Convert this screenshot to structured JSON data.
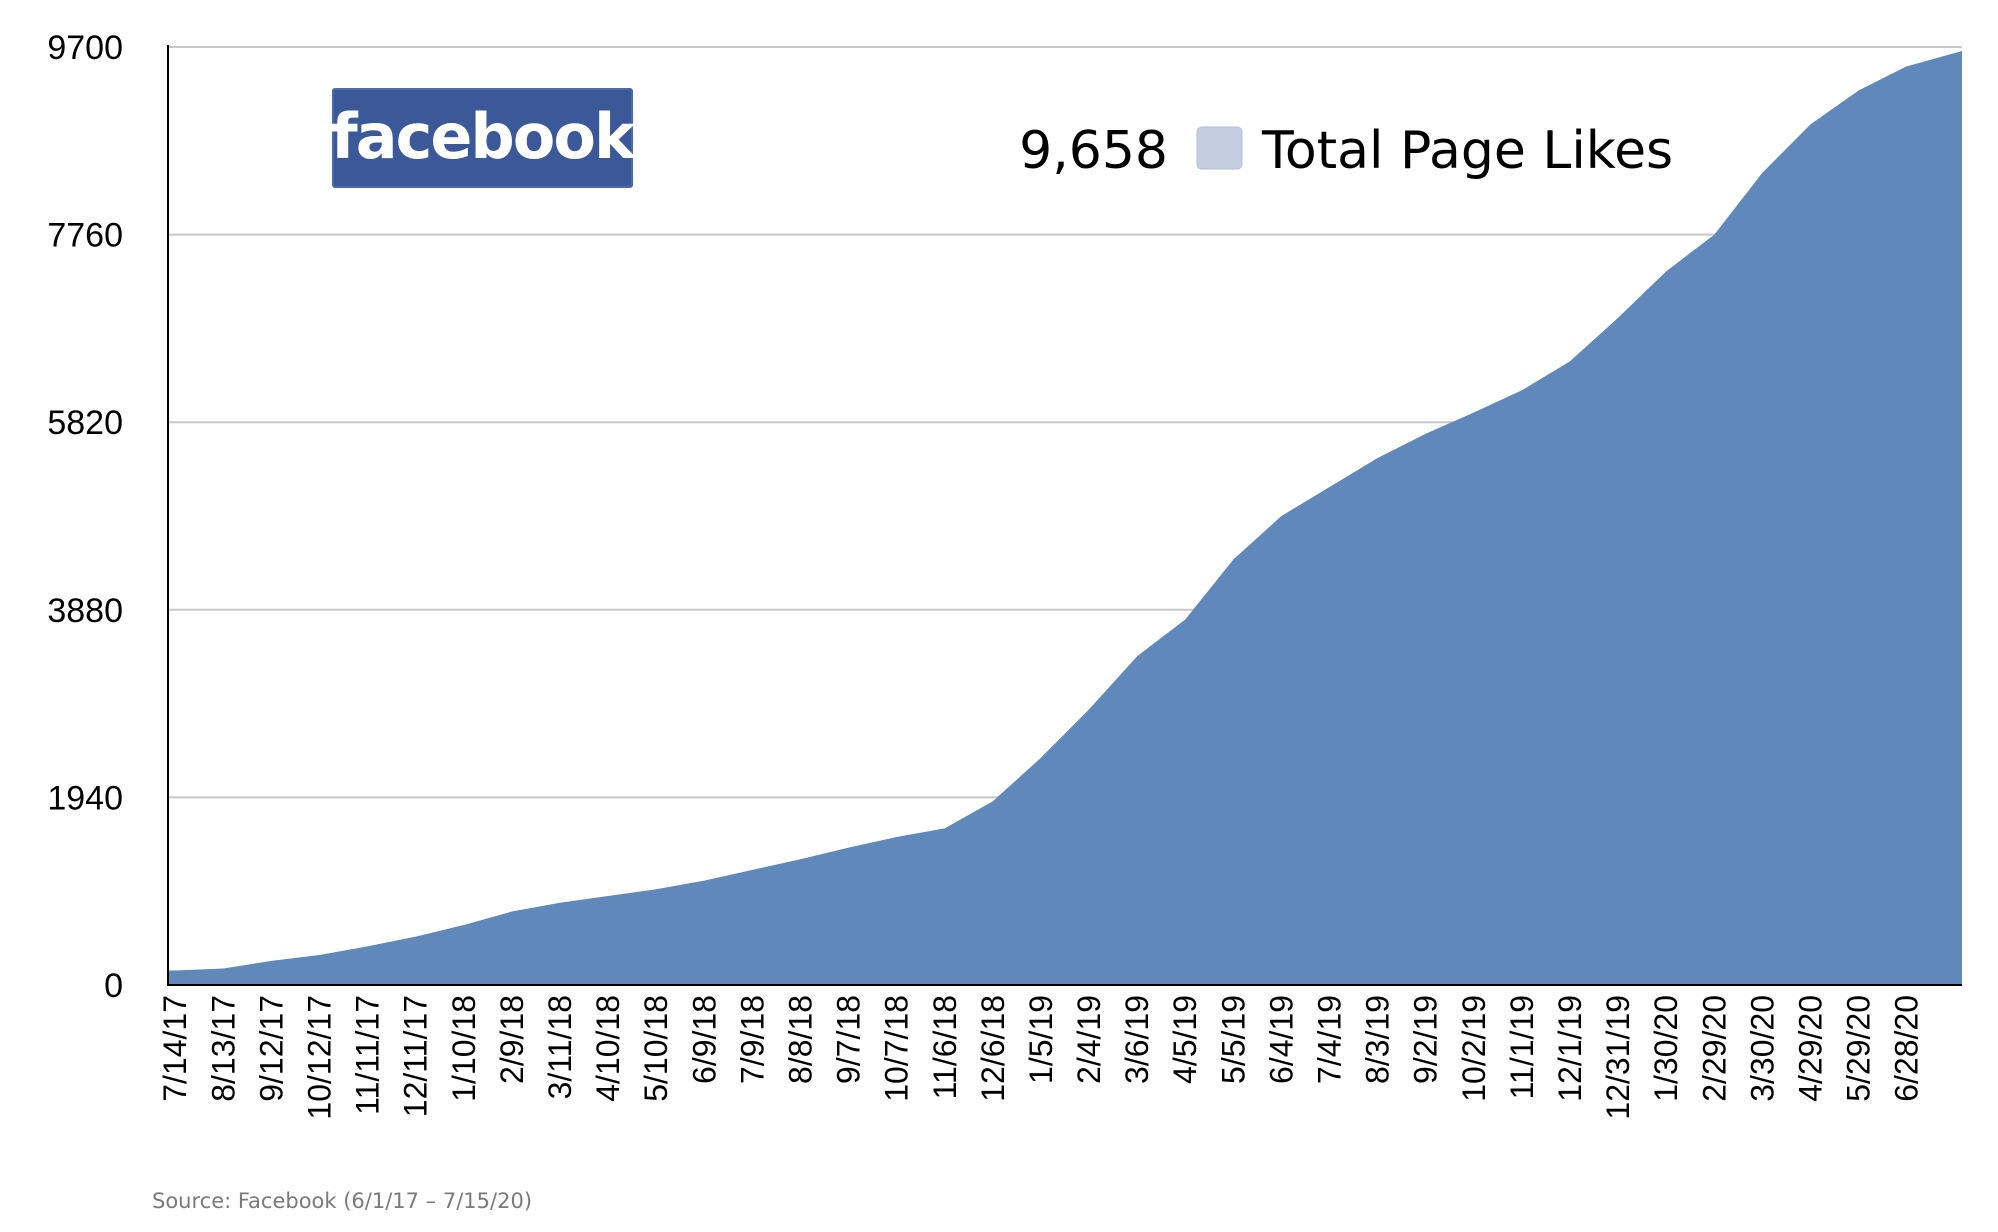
{
  "logo": {
    "text": "facebook",
    "color": "#3b5998"
  },
  "legend": {
    "value": "9,658",
    "label": "Total Page Likes",
    "swatch_color": "#c5cde0"
  },
  "source": "Source: Facebook (6/1/17 – 7/15/20)",
  "colors": {
    "area": "#6088bb",
    "grid": "#c8c8c8",
    "axis": "#000000"
  },
  "chart_data": {
    "type": "area",
    "title": "",
    "xlabel": "",
    "ylabel": "",
    "ylim": [
      0,
      9700
    ],
    "yticks": [
      "0",
      "1940",
      "3880",
      "5820",
      "7760",
      "9700"
    ],
    "grid": true,
    "legend_position": "top-right",
    "series": [
      {
        "name": "Total Page Likes",
        "x": [
          "7/14/17",
          "8/13/17",
          "9/12/17",
          "10/12/17",
          "11/11/17",
          "12/11/17",
          "1/10/18",
          "2/9/18",
          "3/11/18",
          "4/10/18",
          "5/10/18",
          "6/9/18",
          "7/9/18",
          "8/8/18",
          "9/7/18",
          "10/7/18",
          "11/6/18",
          "12/6/18",
          "1/5/19",
          "2/4/19",
          "3/6/19",
          "4/5/19",
          "5/5/19",
          "6/4/19",
          "7/4/19",
          "8/3/19",
          "9/2/19",
          "10/2/19",
          "11/1/19",
          "12/1/19",
          "12/31/19",
          "1/30/20",
          "2/29/20",
          "3/30/20",
          "4/29/20",
          "5/29/20",
          "6/28/20"
        ],
        "values": [
          150,
          170,
          250,
          310,
          400,
          500,
          620,
          760,
          850,
          920,
          990,
          1080,
          1190,
          1300,
          1420,
          1530,
          1620,
          1900,
          2350,
          2850,
          3400,
          3780,
          4400,
          4850,
          5150,
          5450,
          5700,
          5920,
          6150,
          6450,
          6900,
          7380,
          7760,
          8400,
          8900,
          9250,
          9500
        ]
      }
    ],
    "final_value": 9658
  }
}
